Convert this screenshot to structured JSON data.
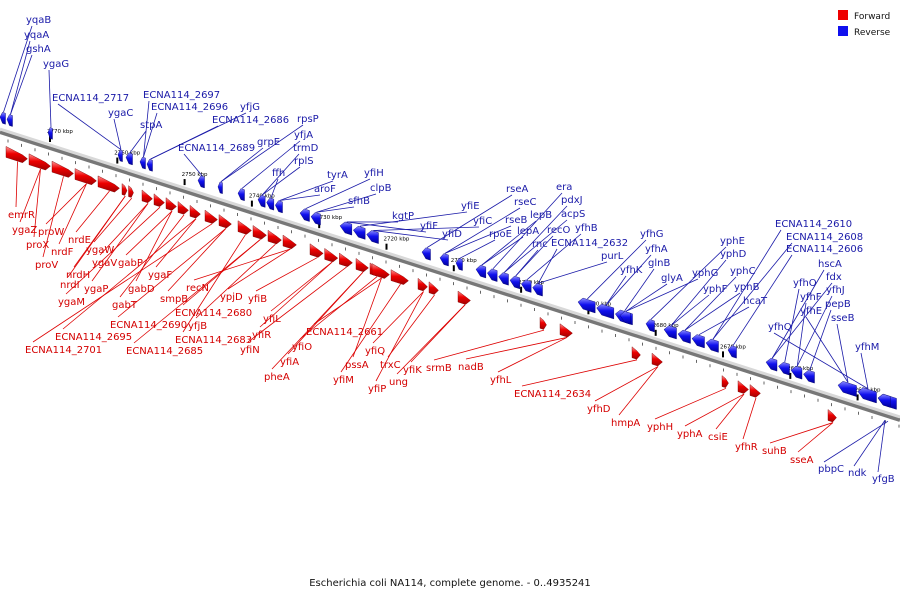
{
  "legend": [
    {
      "label": "Forward",
      "color": "#ee0000"
    },
    {
      "label": "Reverse",
      "color": "#1010ee"
    }
  ],
  "caption": "Escherichia coli NA114, complete genome. - 0..4935241",
  "ticks": [
    {
      "kbp": 2770,
      "label": "2770 kbp"
    },
    {
      "kbp": 2760,
      "label": "2760 kbp"
    },
    {
      "kbp": 2750,
      "label": "2750 kbp"
    },
    {
      "kbp": 2740,
      "label": "2740 kbp"
    },
    {
      "kbp": 2730,
      "label": "2730 kbp"
    },
    {
      "kbp": 2720,
      "label": "2720 kbp"
    },
    {
      "kbp": 2710,
      "label": "2710 kbp"
    },
    {
      "kbp": 2700,
      "label": "2700 kbp"
    },
    {
      "kbp": 2690,
      "label": "2690 kbp"
    },
    {
      "kbp": 2680,
      "label": "2680 kbp"
    },
    {
      "kbp": 2670,
      "label": "2670 kbp"
    },
    {
      "kbp": 2660,
      "label": "2660 kbp"
    },
    {
      "kbp": 2650,
      "label": "2650 kbp"
    }
  ],
  "forward_genes": [
    "emrR",
    "ygaZ",
    "proX",
    "proV",
    "proW",
    "nrdF",
    "nrdE",
    "nrdI",
    "nrdH",
    "ygaW",
    "ygaV",
    "ygaP",
    "ygaM",
    "gabP",
    "gabD",
    "gabT",
    "ygaF",
    "ECNA114_2695",
    "ECNA114_2701",
    "ECNA114_2690",
    "smpB",
    "ECNA114_2683",
    "ECNA114_2685",
    "ECNA114_2680",
    "yfjB",
    "recN",
    "ypjD",
    "yfiB",
    "yfiR",
    "yfiL",
    "yfiN",
    "yfiA",
    "pheA",
    "yfiO",
    "ECNA114_2661",
    "pssA",
    "yfiM",
    "yfiQ",
    "yfiP",
    "trxC",
    "ung",
    "yfiK",
    "srmB",
    "nadB",
    "yfhL",
    "ECNA114_2634",
    "yfhD",
    "hmpA",
    "yphH",
    "yphA",
    "csiE",
    "yfhR",
    "suhB",
    "sseA"
  ],
  "reverse_genes": [
    "yqaB",
    "yqaA",
    "gshA",
    "ygaG",
    "ECNA114_2717",
    "ygaC",
    "stpA",
    "ECNA114_2697",
    "ECNA114_2696",
    "yfjG",
    "ECNA114_2686",
    "ECNA114_2689",
    "grpE",
    "rpsP",
    "yfjA",
    "trmD",
    "rplS",
    "ffh",
    "tyrA",
    "aroF",
    "yfiH",
    "clpB",
    "sfhB",
    "kgtP",
    "yfiF",
    "yfiE",
    "yfiD",
    "yfiC",
    "rseA",
    "rseC",
    "rseB",
    "rpoE",
    "lepB",
    "lepA",
    "era",
    "pdxJ",
    "acpS",
    "recO",
    "rnc",
    "yfhB",
    "ECNA114_2632",
    "purL",
    "yfhG",
    "yfhK",
    "yfhA",
    "glnB",
    "glyA",
    "yphG",
    "yphE",
    "yphD",
    "yphF",
    "yphC",
    "yphB",
    "hcaT",
    "ECNA114_2610",
    "ECNA114_2608",
    "ECNA114_2606",
    "hscA",
    "fdx",
    "yfhO",
    "yfhJ",
    "yfhF",
    "pepB",
    "yfhE",
    "sseB",
    "yfhQ",
    "yfhM",
    "pbpC",
    "ndk",
    "yfgB"
  ]
}
